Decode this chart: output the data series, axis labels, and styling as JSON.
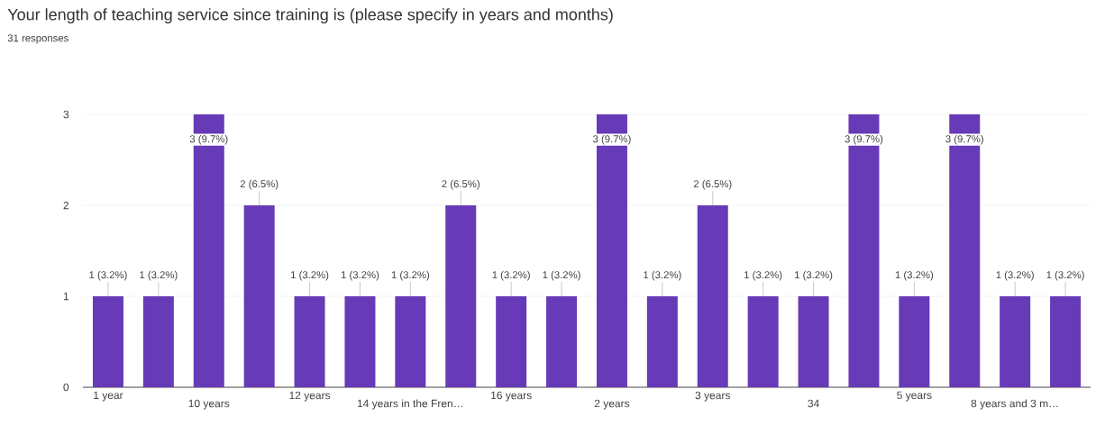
{
  "chart_data": {
    "type": "bar",
    "title": "Your length of teaching service since training is (please specify in years and months)",
    "subtitle": "31 responses",
    "categories": [
      "1 year",
      null,
      "10 years",
      null,
      "12 years",
      null,
      "14 years in the Fren…",
      null,
      "16 years",
      null,
      "2 years",
      null,
      "3 years",
      null,
      "34",
      null,
      "5 years",
      null,
      "8 years and 3 m…",
      null
    ],
    "values": [
      1,
      1,
      3,
      2,
      1,
      1,
      1,
      2,
      1,
      1,
      3,
      1,
      2,
      1,
      1,
      3,
      1,
      3,
      1,
      1
    ],
    "value_labels": [
      "1 (3.2%)",
      "1 (3.2%)",
      "3 (9.7%)",
      "2 (6.5%)",
      "1 (3.2%)",
      "1 (3.2%)",
      "1 (3.2%)",
      "2 (6.5%)",
      "1 (3.2%)",
      "1 (3.2%)",
      "3 (9.7%)",
      "1 (3.2%)",
      "2 (6.5%)",
      "1 (3.2%)",
      "1 (3.2%)",
      "3 (9.7%)",
      "1 (3.2%)",
      "3 (9.7%)",
      "1 (3.2%)",
      "1 (3.2%)"
    ],
    "color": "#673ab7",
    "ylim": [
      0,
      3
    ],
    "yticks": [
      0,
      1,
      2,
      3
    ],
    "grid": "y"
  }
}
